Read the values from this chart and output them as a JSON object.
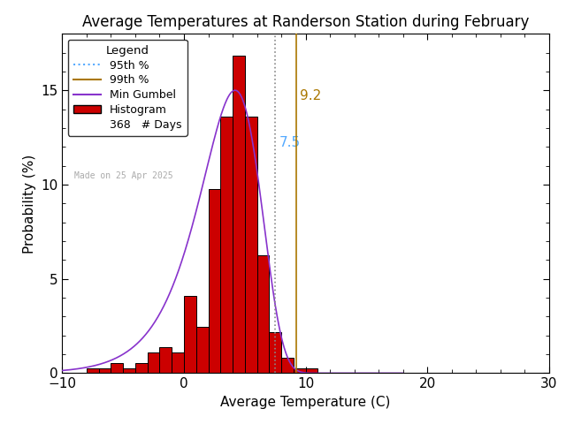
{
  "title": "Average Temperatures at Randerson Station during February",
  "xlabel": "Average Temperature (C)",
  "ylabel": "Probability (%)",
  "xlim": [
    -10,
    30
  ],
  "ylim": [
    0,
    18
  ],
  "yticks": [
    0,
    5,
    10,
    15
  ],
  "xticks": [
    -10,
    0,
    10,
    20,
    30
  ],
  "bar_left_edges": [
    -8,
    -7,
    -6,
    -5,
    -4,
    -3,
    -2,
    -1,
    0,
    1,
    2,
    3,
    4,
    5,
    6,
    7,
    8,
    9,
    10
  ],
  "bar_heights": [
    0.27,
    0.27,
    0.54,
    0.27,
    0.54,
    1.09,
    1.36,
    1.09,
    4.08,
    2.45,
    9.78,
    13.59,
    16.85,
    13.59,
    6.25,
    2.17,
    0.82,
    0.27,
    0.27
  ],
  "bar_color": "#cc0000",
  "bar_edgecolor": "#000000",
  "gumbel_color": "#8833cc",
  "p95_value": 7.5,
  "p95_color": "#55aaff",
  "p95_label": "7.5",
  "p99_value": 9.2,
  "p99_color": "#aa7700",
  "p99_label": "9.2",
  "n_days": 368,
  "made_on": "Made on 25 Apr 2025",
  "background_color": "#ffffff",
  "gumbel_mu": 4.2,
  "gumbel_beta": 2.5,
  "gumbel_scale": 102.0,
  "title_fontsize": 12,
  "axis_fontsize": 11,
  "tick_fontsize": 11,
  "annotation_fontsize": 11
}
